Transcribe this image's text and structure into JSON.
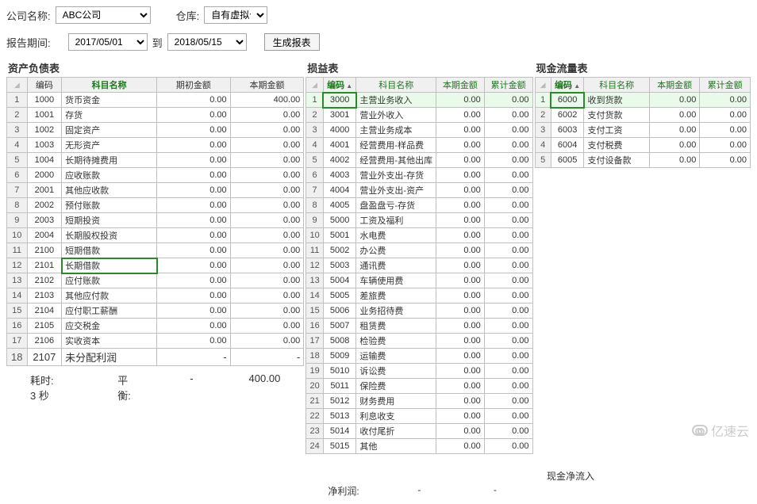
{
  "filters": {
    "company_label": "公司名称:",
    "company_value": "ABC公司",
    "warehouse_label": "仓库:",
    "warehouse_value": "自有虚拟仓",
    "period_label": "报告期间:",
    "date_from": "2017/05/01",
    "date_sep": "到",
    "date_to": "2018/05/15",
    "gen_btn": "生成报表"
  },
  "panel1": {
    "title": "资产负债表",
    "cols": [
      "编码",
      "科目名称",
      "期初金额",
      "本期金额"
    ],
    "rows": [
      {
        "n": "1",
        "code": "1000",
        "name": "货币资金",
        "a1": "0.00",
        "a2": "400.00"
      },
      {
        "n": "2",
        "code": "1001",
        "name": "存货",
        "a1": "0.00",
        "a2": "0.00"
      },
      {
        "n": "3",
        "code": "1002",
        "name": "固定资产",
        "a1": "0.00",
        "a2": "0.00"
      },
      {
        "n": "4",
        "code": "1003",
        "name": "无形资产",
        "a1": "0.00",
        "a2": "0.00"
      },
      {
        "n": "5",
        "code": "1004",
        "name": "长期待摊费用",
        "a1": "0.00",
        "a2": "0.00"
      },
      {
        "n": "6",
        "code": "2000",
        "name": "应收账款",
        "a1": "0.00",
        "a2": "0.00"
      },
      {
        "n": "7",
        "code": "2001",
        "name": "其他应收款",
        "a1": "0.00",
        "a2": "0.00"
      },
      {
        "n": "8",
        "code": "2002",
        "name": "预付账款",
        "a1": "0.00",
        "a2": "0.00"
      },
      {
        "n": "9",
        "code": "2003",
        "name": "短期投资",
        "a1": "0.00",
        "a2": "0.00"
      },
      {
        "n": "10",
        "code": "2004",
        "name": "长期股权投资",
        "a1": "0.00",
        "a2": "0.00"
      },
      {
        "n": "11",
        "code": "2100",
        "name": "短期借款",
        "a1": "0.00",
        "a2": "0.00"
      },
      {
        "n": "12",
        "code": "2101",
        "name": "长期借款",
        "a1": "0.00",
        "a2": "0.00"
      },
      {
        "n": "13",
        "code": "2102",
        "name": "应付账款",
        "a1": "0.00",
        "a2": "0.00"
      },
      {
        "n": "14",
        "code": "2103",
        "name": "其他应付款",
        "a1": "0.00",
        "a2": "0.00"
      },
      {
        "n": "15",
        "code": "2104",
        "name": "应付职工薪酬",
        "a1": "0.00",
        "a2": "0.00"
      },
      {
        "n": "16",
        "code": "2105",
        "name": "应交税金",
        "a1": "0.00",
        "a2": "0.00"
      },
      {
        "n": "17",
        "code": "2106",
        "name": "实收资本",
        "a1": "0.00",
        "a2": "0.00"
      }
    ],
    "lastrow": {
      "n": "18",
      "code": "2107",
      "name": "未分配利润",
      "a1": "-",
      "a2": "-"
    },
    "summary_time_lbl": "耗时:",
    "summary_time_val": "3 秒",
    "summary_bal_lbl": "平衡:",
    "summary_bal_v1": "-",
    "summary_bal_v2": "400.00"
  },
  "panel2": {
    "title": "损益表",
    "cols": [
      "编码",
      "科目名称",
      "本期金额",
      "累计金额"
    ],
    "rows": [
      {
        "n": "1",
        "code": "3000",
        "name": "主营业务收入",
        "a1": "0.00",
        "a2": "0.00"
      },
      {
        "n": "2",
        "code": "3001",
        "name": "营业外收入",
        "a1": "0.00",
        "a2": "0.00"
      },
      {
        "n": "3",
        "code": "4000",
        "name": "主营业务成本",
        "a1": "0.00",
        "a2": "0.00"
      },
      {
        "n": "4",
        "code": "4001",
        "name": "经营费用-样品费",
        "a1": "0.00",
        "a2": "0.00"
      },
      {
        "n": "5",
        "code": "4002",
        "name": "经营费用-其他出库",
        "a1": "0.00",
        "a2": "0.00"
      },
      {
        "n": "6",
        "code": "4003",
        "name": "营业外支出-存货",
        "a1": "0.00",
        "a2": "0.00"
      },
      {
        "n": "7",
        "code": "4004",
        "name": "营业外支出-资产",
        "a1": "0.00",
        "a2": "0.00"
      },
      {
        "n": "8",
        "code": "4005",
        "name": "盘盈盘亏-存货",
        "a1": "0.00",
        "a2": "0.00"
      },
      {
        "n": "9",
        "code": "5000",
        "name": "工资及福利",
        "a1": "0.00",
        "a2": "0.00"
      },
      {
        "n": "10",
        "code": "5001",
        "name": "水电费",
        "a1": "0.00",
        "a2": "0.00"
      },
      {
        "n": "11",
        "code": "5002",
        "name": "办公费",
        "a1": "0.00",
        "a2": "0.00"
      },
      {
        "n": "12",
        "code": "5003",
        "name": "通讯费",
        "a1": "0.00",
        "a2": "0.00"
      },
      {
        "n": "13",
        "code": "5004",
        "name": "车辆使用费",
        "a1": "0.00",
        "a2": "0.00"
      },
      {
        "n": "14",
        "code": "5005",
        "name": "差旅费",
        "a1": "0.00",
        "a2": "0.00"
      },
      {
        "n": "15",
        "code": "5006",
        "name": "业务招待费",
        "a1": "0.00",
        "a2": "0.00"
      },
      {
        "n": "16",
        "code": "5007",
        "name": "租赁费",
        "a1": "0.00",
        "a2": "0.00"
      },
      {
        "n": "17",
        "code": "5008",
        "name": "检验费",
        "a1": "0.00",
        "a2": "0.00"
      },
      {
        "n": "18",
        "code": "5009",
        "name": "运输费",
        "a1": "0.00",
        "a2": "0.00"
      },
      {
        "n": "19",
        "code": "5010",
        "name": "诉讼费",
        "a1": "0.00",
        "a2": "0.00"
      },
      {
        "n": "20",
        "code": "5011",
        "name": "保险费",
        "a1": "0.00",
        "a2": "0.00"
      },
      {
        "n": "21",
        "code": "5012",
        "name": "财务费用",
        "a1": "0.00",
        "a2": "0.00"
      },
      {
        "n": "22",
        "code": "5013",
        "name": "利息收支",
        "a1": "0.00",
        "a2": "0.00"
      },
      {
        "n": "23",
        "code": "5014",
        "name": "收付尾折",
        "a1": "0.00",
        "a2": "0.00"
      },
      {
        "n": "24",
        "code": "5015",
        "name": "其他",
        "a1": "0.00",
        "a2": "0.00"
      }
    ],
    "footer_lbl": "净利润:",
    "footer_v1": "-",
    "footer_v2": "-"
  },
  "panel3": {
    "title": "现金流量表",
    "cols": [
      "编码",
      "科目名称",
      "本期金额",
      "累计金额"
    ],
    "rows": [
      {
        "n": "1",
        "code": "6000",
        "name": "收到货款",
        "a1": "0.00",
        "a2": "0.00"
      },
      {
        "n": "2",
        "code": "6002",
        "name": "支付货款",
        "a1": "0.00",
        "a2": "0.00"
      },
      {
        "n": "3",
        "code": "6003",
        "name": "支付工资",
        "a1": "0.00",
        "a2": "0.00"
      },
      {
        "n": "4",
        "code": "6004",
        "name": "支付税费",
        "a1": "0.00",
        "a2": "0.00"
      },
      {
        "n": "5",
        "code": "6005",
        "name": "支付设备款",
        "a1": "0.00",
        "a2": "0.00"
      }
    ],
    "footer_lbl": "现金净流入",
    "footer_v1": "",
    "footer_v2": ""
  },
  "watermark": "亿速云",
  "colors": {
    "accent": "#1a7a1a",
    "border": "#c0c0c0",
    "header_bg": "#f0f0f0",
    "sel": "#2a8a2a"
  }
}
